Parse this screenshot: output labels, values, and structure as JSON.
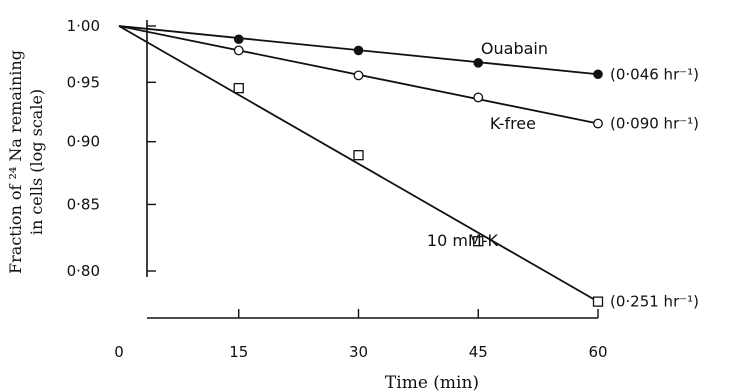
{
  "chart_data": {
    "type": "scatter",
    "title": "",
    "xlabel": "Time (min)",
    "ylabel_line1": "Fraction of ²⁴ Na remaining",
    "ylabel_line2": "in cells (log scale)",
    "xlim": [
      0,
      60
    ],
    "ylim": [
      0.77,
      1.0
    ],
    "yscale": "log",
    "x_ticks": [
      "0",
      "15",
      "30",
      "45",
      "60"
    ],
    "y_ticks": [
      "1·00",
      "0·95",
      "0·90",
      "0·85",
      "0·80"
    ],
    "series": [
      {
        "name": "Ouabain",
        "marker": "filled-circle",
        "rate_label": "(0·046 hr⁻¹)",
        "x": [
          0,
          15,
          30,
          45,
          60
        ],
        "y": [
          1.0,
          0.988,
          0.978,
          0.967,
          0.957
        ]
      },
      {
        "name": "K-free",
        "marker": "open-circle",
        "rate_label": "(0·090 hr⁻¹)",
        "x": [
          0,
          15,
          30,
          45,
          60
        ],
        "y": [
          1.0,
          0.978,
          0.956,
          0.937,
          0.915
        ]
      },
      {
        "name": "10 mM-K",
        "marker": "open-square",
        "rate_label": "(0·251 hr⁻¹)",
        "x": [
          0,
          15,
          30,
          45,
          60
        ],
        "y": [
          1.0,
          0.945,
          0.889,
          0.822,
          0.778
        ]
      }
    ]
  }
}
